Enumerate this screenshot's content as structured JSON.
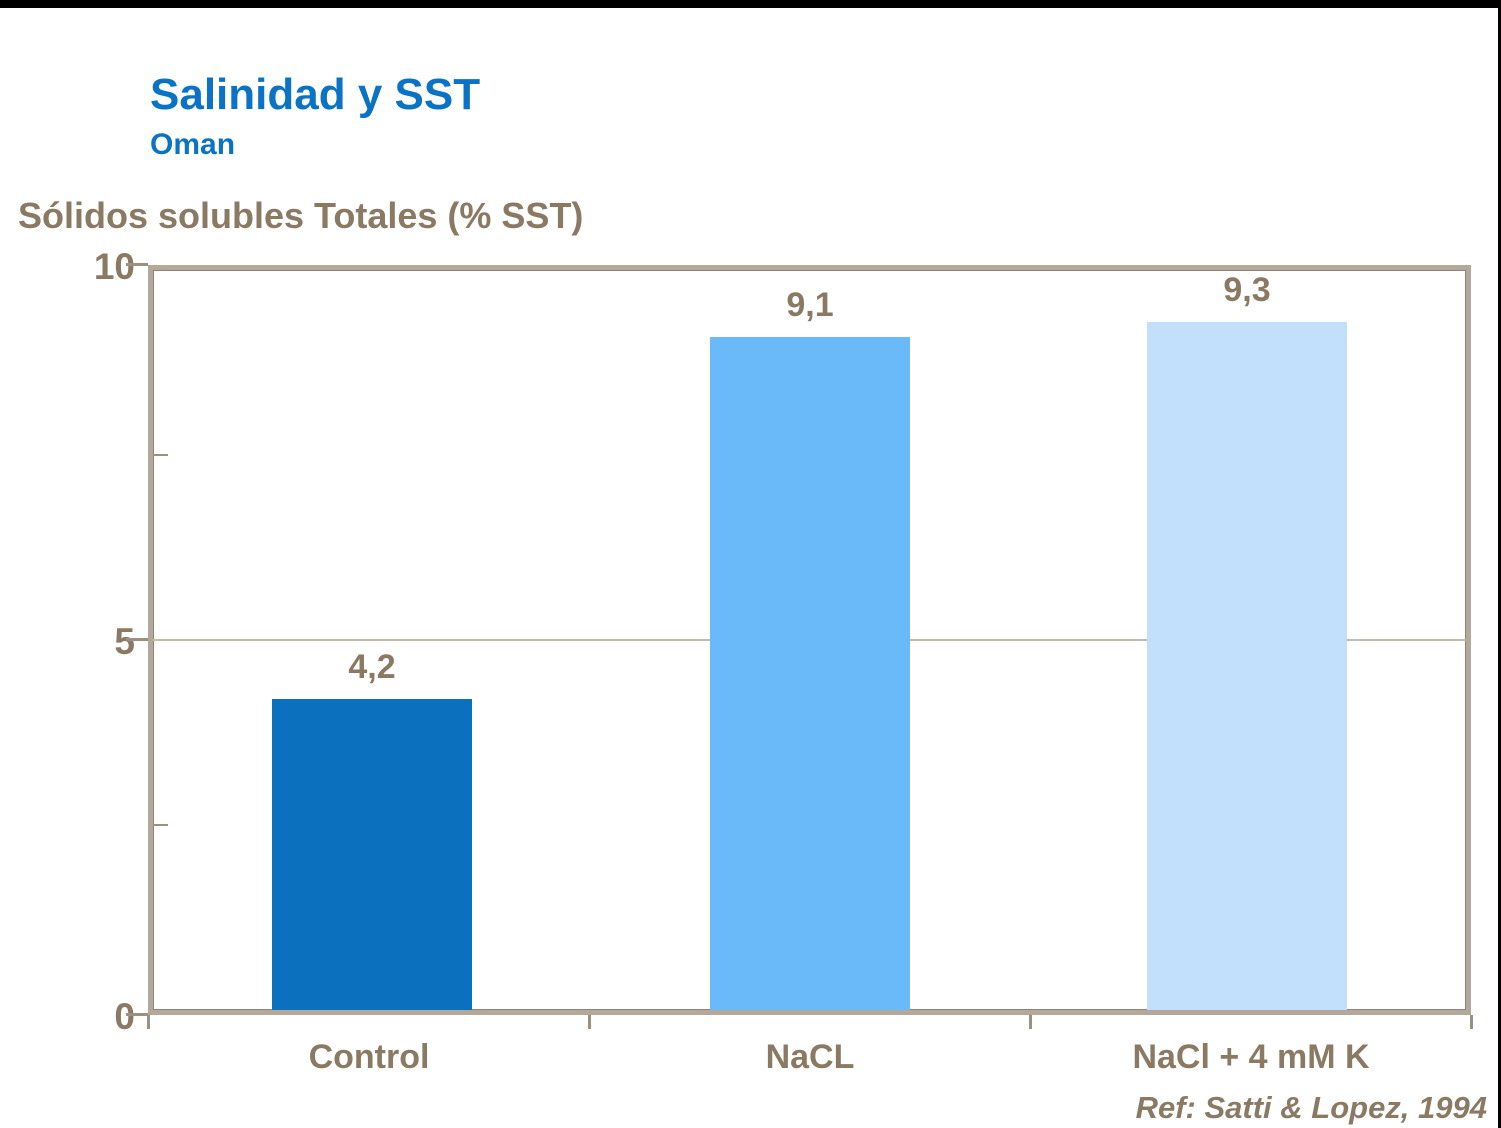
{
  "header": {
    "title": "Salinidad y SST",
    "subtitle": "Oman"
  },
  "chart_data": {
    "type": "bar",
    "title": "Salinidad y SST",
    "subtitle": "Oman",
    "categories": [
      "Control",
      "NaCL",
      "NaCl + 4 mM K"
    ],
    "values": [
      4.2,
      9.1,
      9.3
    ],
    "value_labels": [
      "4,2",
      "9,1",
      "9,3"
    ],
    "bar_colors": [
      "#0b70be",
      "#6ab9f8",
      "#c2e0fb"
    ],
    "ylabel": "Sólidos solubles Totales (% SST)",
    "xlabel": "",
    "ylim": [
      0,
      10
    ],
    "yticks": [
      0,
      5,
      10
    ],
    "ytick_labels": [
      "0",
      "5",
      "10"
    ],
    "minor_yticks": [
      2.5,
      7.5
    ],
    "grid": "single horizontal gridline at y=5",
    "legend_position": "none",
    "reference": "Ref: Satti & Lopez, 1994"
  },
  "colors": {
    "title_blue": "#0a73c6",
    "text_brown": "#8a7a63",
    "frame_tan": "#b3a89a",
    "gridline": "#c3baac",
    "top_bar_black": "#000000",
    "background": "#ffffff"
  }
}
